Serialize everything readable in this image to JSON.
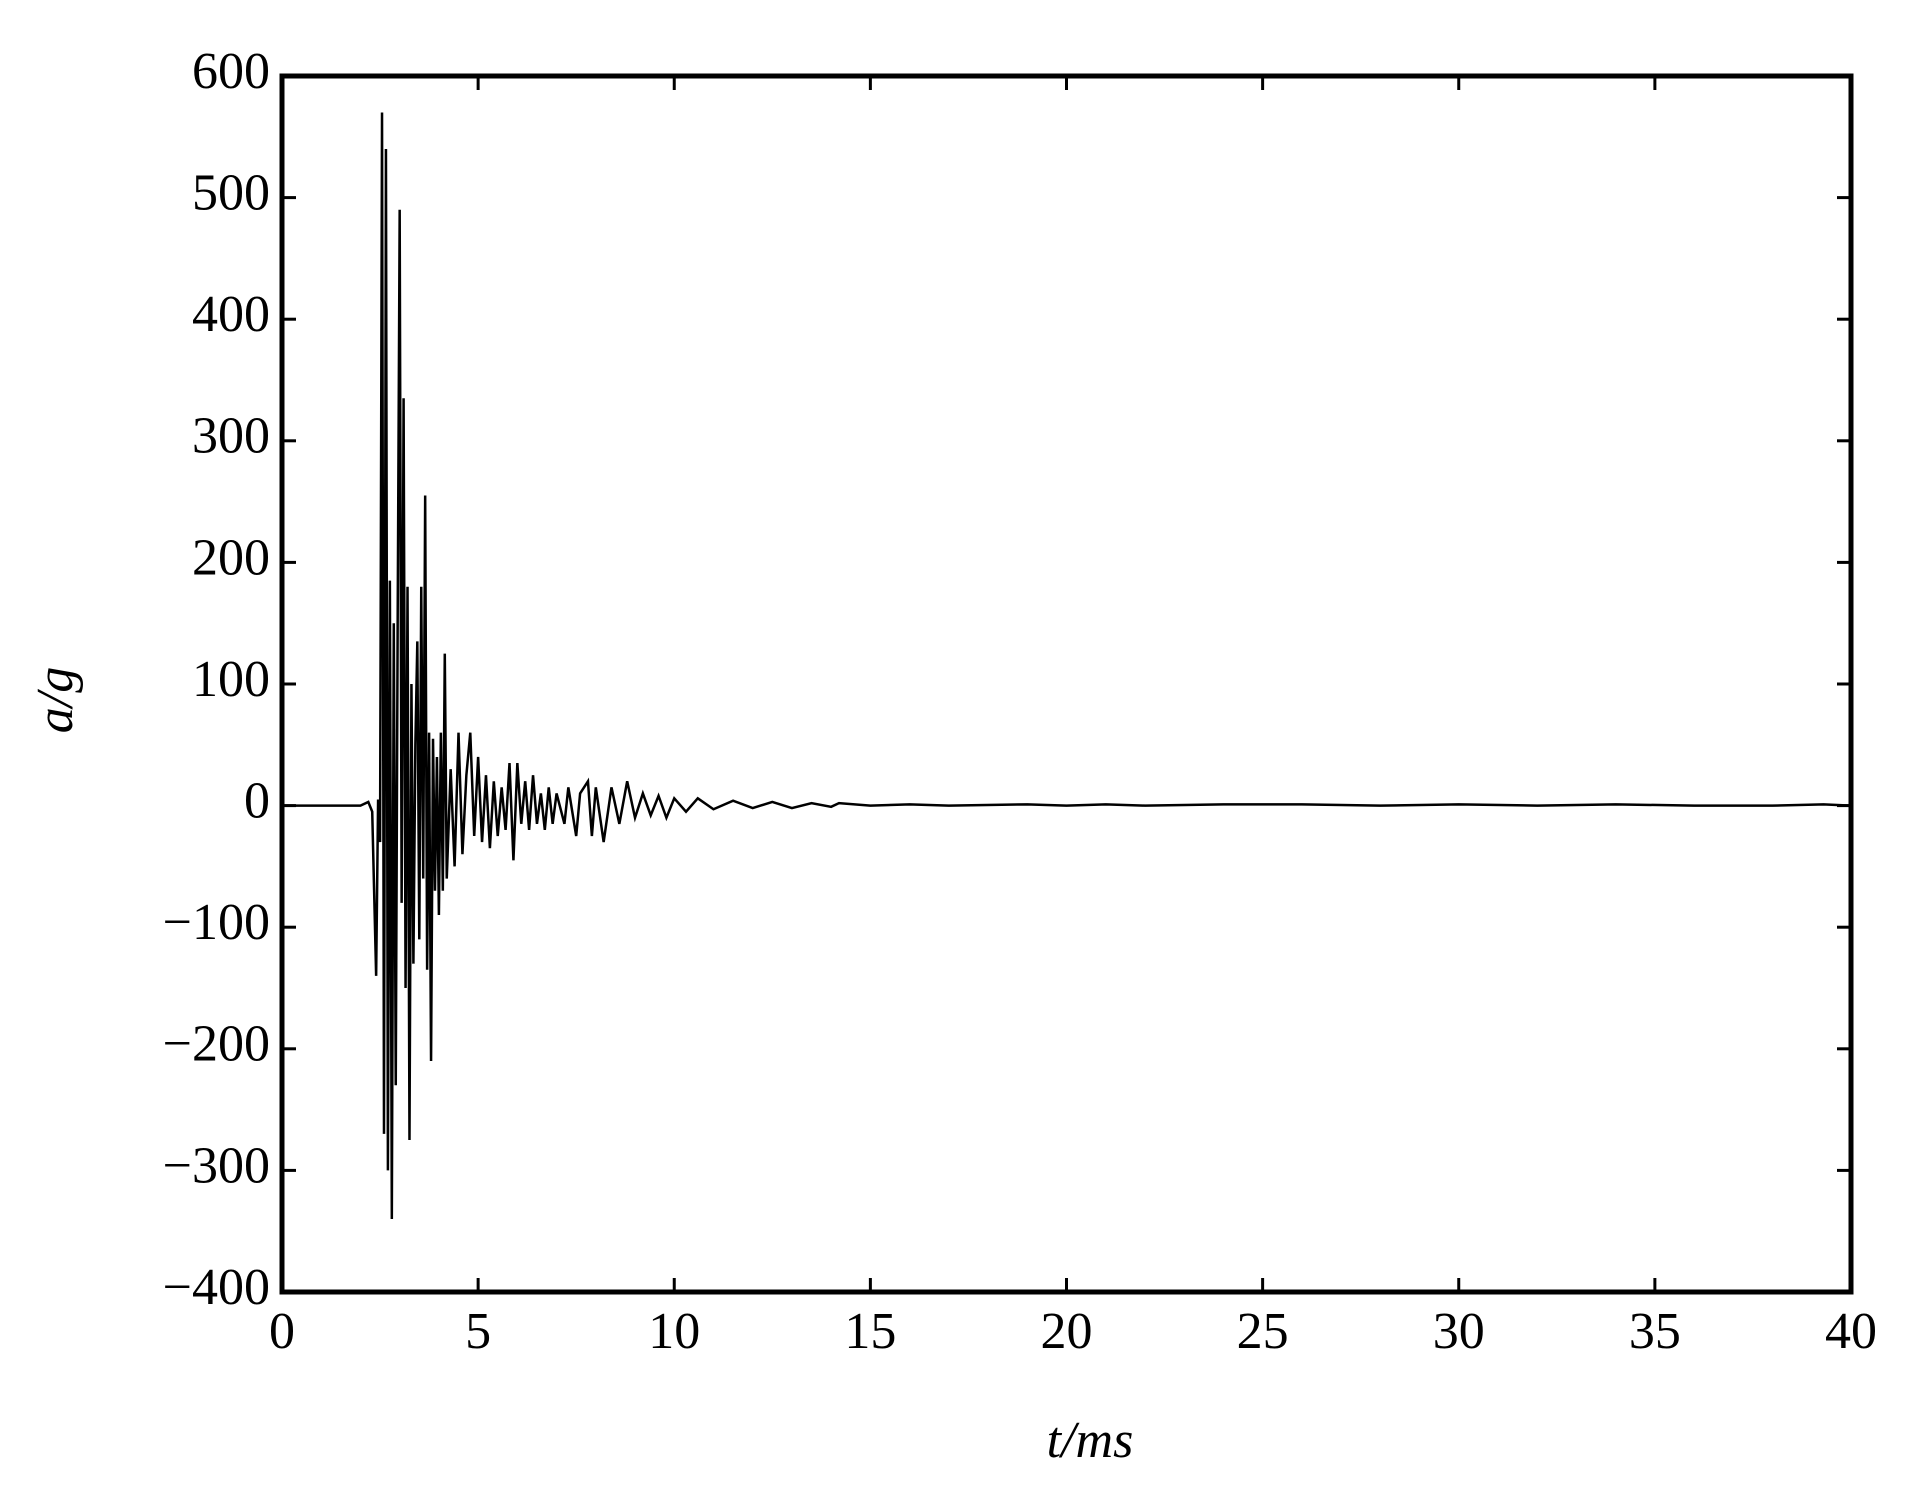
{
  "chart_data": {
    "type": "line",
    "xlabel": "t/ms",
    "ylabel": "a/g",
    "xlim": [
      0,
      40
    ],
    "ylim": [
      -400,
      600
    ],
    "xticks": [
      0,
      5,
      10,
      15,
      20,
      25,
      30,
      35,
      40
    ],
    "yticks": [
      {
        "value": -400,
        "label": "−400"
      },
      {
        "value": -300,
        "label": "−300"
      },
      {
        "value": -200,
        "label": "−200"
      },
      {
        "value": -100,
        "label": "−100"
      },
      0,
      100,
      200,
      300,
      400,
      500,
      600
    ],
    "grid": false,
    "series": [
      {
        "color": "#000000",
        "x": [
          0,
          2.0,
          2.2,
          2.3,
          2.4,
          2.45,
          2.5,
          2.55,
          2.6,
          2.65,
          2.7,
          2.75,
          2.8,
          2.85,
          2.9,
          2.95,
          3.0,
          3.05,
          3.1,
          3.15,
          3.2,
          3.25,
          3.3,
          3.35,
          3.4,
          3.45,
          3.5,
          3.55,
          3.6,
          3.65,
          3.7,
          3.75,
          3.8,
          3.85,
          3.9,
          3.95,
          4.0,
          4.05,
          4.1,
          4.15,
          4.2,
          4.3,
          4.4,
          4.5,
          4.6,
          4.7,
          4.8,
          4.9,
          5.0,
          5.1,
          5.2,
          5.3,
          5.4,
          5.5,
          5.6,
          5.7,
          5.8,
          5.9,
          6.0,
          6.1,
          6.2,
          6.3,
          6.4,
          6.5,
          6.6,
          6.7,
          6.8,
          6.9,
          7.0,
          7.2,
          7.3,
          7.5,
          7.6,
          7.8,
          7.9,
          8.0,
          8.2,
          8.4,
          8.6,
          8.8,
          9.0,
          9.2,
          9.4,
          9.6,
          9.8,
          10.0,
          10.3,
          10.6,
          11.0,
          11.5,
          12.0,
          12.5,
          13.0,
          13.5,
          14.0,
          14.2,
          15.0,
          16.0,
          17.0,
          19.0,
          20.0,
          21.0,
          22.0,
          24.0,
          26.0,
          28.0,
          30.0,
          32.0,
          34.0,
          36.0,
          38.0,
          39.3,
          40
        ],
        "values": [
          0,
          0,
          3,
          -5,
          -140,
          5,
          -30,
          570,
          -270,
          540,
          -300,
          185,
          -340,
          150,
          -230,
          160,
          490,
          -80,
          335,
          -150,
          180,
          -275,
          100,
          -130,
          50,
          135,
          -110,
          180,
          -60,
          255,
          -135,
          60,
          -210,
          55,
          -70,
          40,
          -90,
          60,
          -70,
          125,
          -60,
          30,
          -50,
          60,
          -40,
          25,
          60,
          -25,
          40,
          -30,
          25,
          -35,
          20,
          -25,
          15,
          -20,
          35,
          -45,
          35,
          -15,
          20,
          -20,
          25,
          -15,
          10,
          -20,
          15,
          -15,
          10,
          -15,
          15,
          -25,
          10,
          20,
          -25,
          15,
          -30,
          15,
          -15,
          20,
          -10,
          10,
          -8,
          8,
          -10,
          6,
          -5,
          6,
          -3,
          4,
          -2,
          3,
          -2,
          2,
          -1,
          2,
          0,
          1,
          0,
          1,
          0,
          1,
          0,
          1,
          1,
          0,
          1,
          0,
          1,
          0,
          0,
          1,
          0
        ]
      }
    ]
  }
}
